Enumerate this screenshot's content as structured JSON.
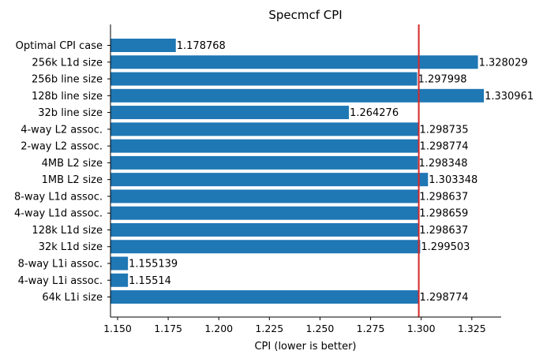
{
  "chart_data": {
    "type": "bar",
    "orientation": "horizontal",
    "title": "Specmcf CPI",
    "xlabel": "CPI (lower is better)",
    "ylabel": "",
    "xlim": [
      1.1465,
      1.3395
    ],
    "xticks": [
      1.15,
      1.175,
      1.2,
      1.225,
      1.25,
      1.275,
      1.3,
      1.325
    ],
    "xtick_labels": [
      "1.150",
      "1.175",
      "1.200",
      "1.225",
      "1.250",
      "1.275",
      "1.300",
      "1.325"
    ],
    "categories": [
      "Optimal CPI case",
      "256k L1d size",
      "256b line size",
      "128b line size",
      "32b line size",
      "4-way L2 assoc.",
      "2-way L2 assoc.",
      "4MB L2 size",
      "1MB L2 size",
      "8-way L1d assoc.",
      "4-way L1d assoc.",
      "128k L1d size",
      "32k L1d size",
      "8-way L1i assoc.",
      "4-way L1i assoc.",
      "64k L1i size"
    ],
    "values": [
      1.178768,
      1.328029,
      1.297998,
      1.330961,
      1.264276,
      1.298735,
      1.298774,
      1.298348,
      1.303348,
      1.298637,
      1.298659,
      1.298637,
      1.299503,
      1.155139,
      1.15514,
      1.298774
    ],
    "value_labels": [
      "1.178768",
      "1.328029",
      "1.297998",
      "1.330961",
      "1.264276",
      "1.298735",
      "1.298774",
      "1.298348",
      "1.303348",
      "1.298637",
      "1.298659",
      "1.298637",
      "1.299503",
      "1.155139",
      "1.15514",
      "1.298774"
    ],
    "reference_line": {
      "x": 1.2988,
      "color": "#d62728"
    },
    "bar_color": "#1f77b4",
    "grid": false,
    "legend": "none"
  }
}
